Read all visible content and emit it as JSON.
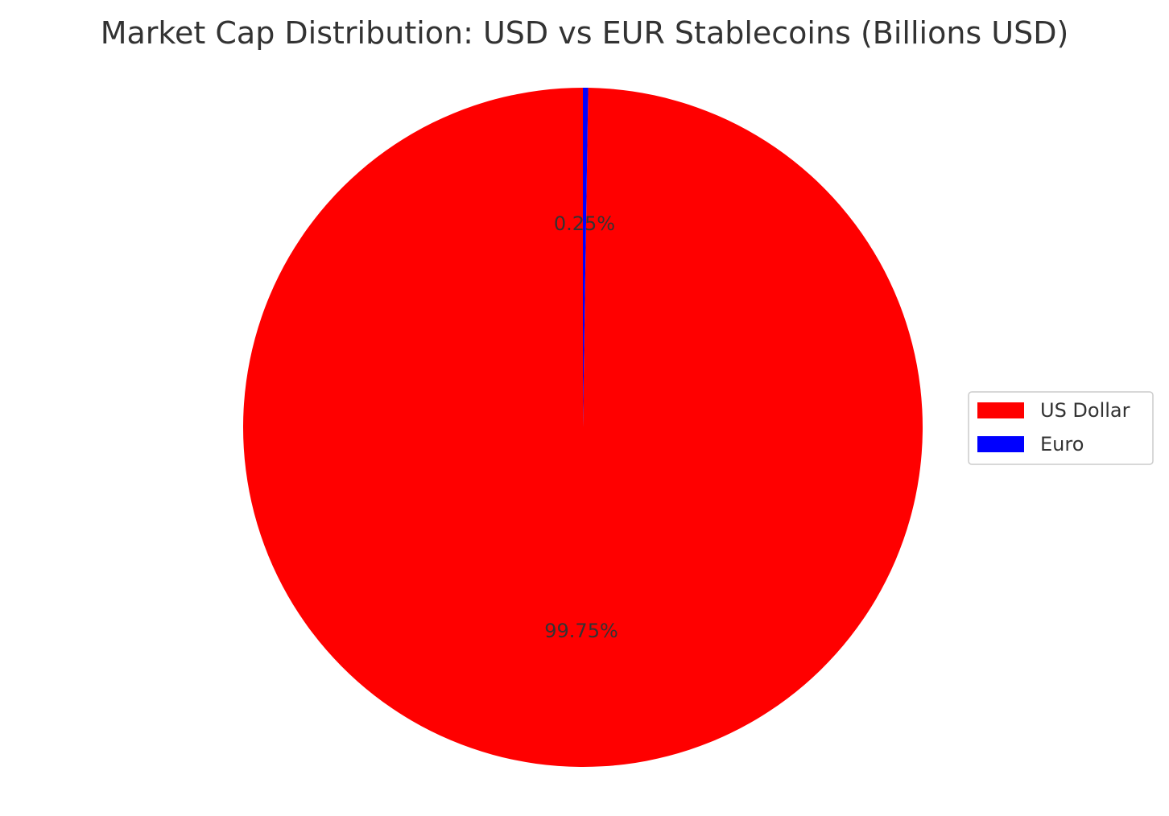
{
  "chart_data": {
    "type": "pie",
    "title": "Market Cap Distribution: USD vs EUR Stablecoins (Billions USD)",
    "slices": [
      {
        "label": "US Dollar",
        "percent": 99.75,
        "percent_label": "99.75%",
        "color": "#ff0000"
      },
      {
        "label": "Euro",
        "percent": 0.25,
        "percent_label": "0.25%",
        "color": "#0000ff"
      }
    ],
    "start_angle_deg": 90,
    "direction": "counterclockwise",
    "legend_position": "center-right"
  }
}
